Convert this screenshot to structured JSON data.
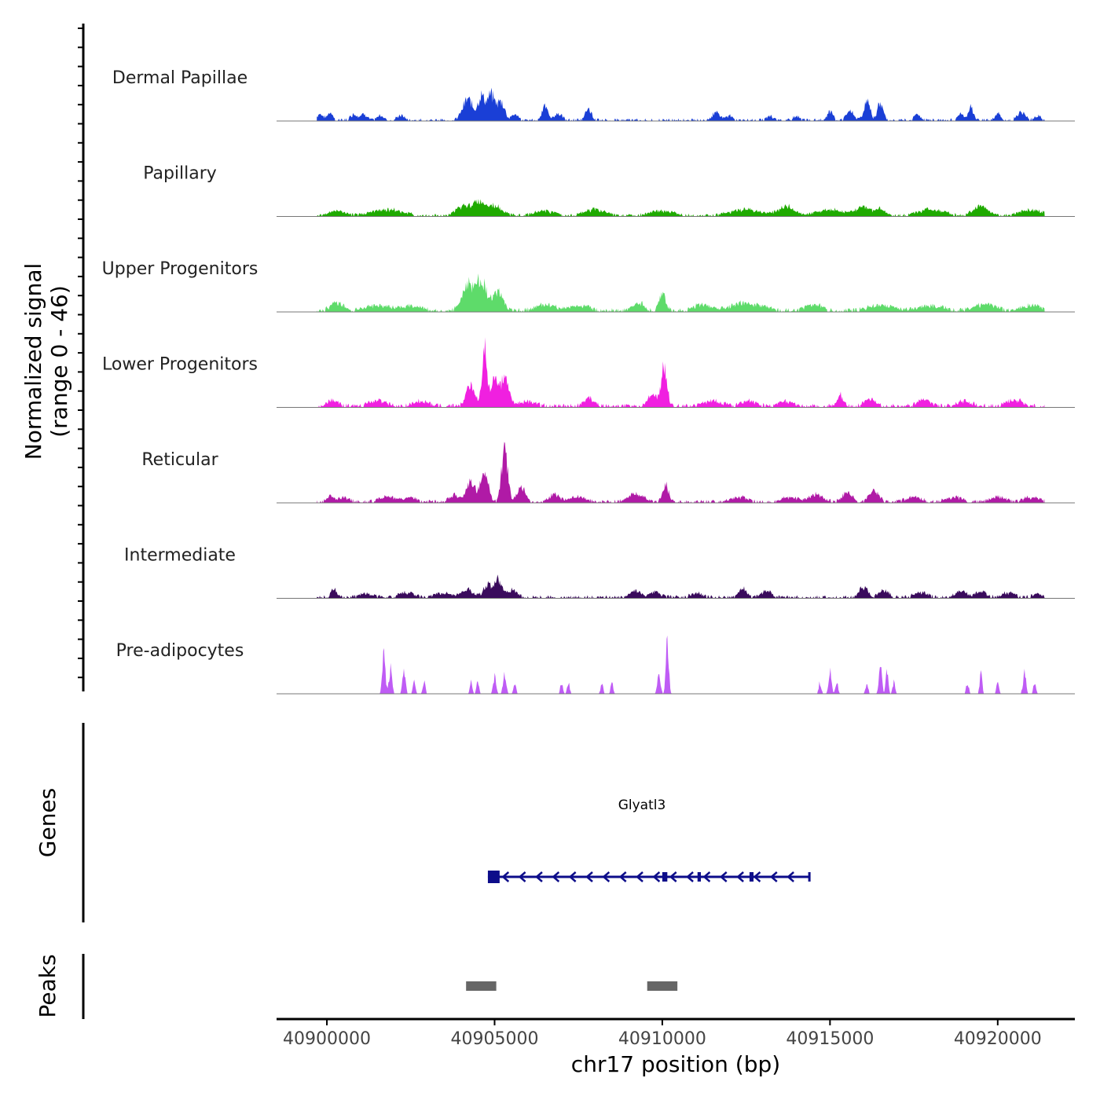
{
  "chart_data": {
    "type": "area",
    "title": "",
    "ylabel_line1": "Normalized signal",
    "ylabel_line2": "(range 0 - 46)",
    "genes_label": "Genes",
    "peaks_label": "Peaks",
    "xlabel": "chr17 position (bp)",
    "xlim": [
      40898500,
      40922300
    ],
    "ylim": [
      0,
      46
    ],
    "xticks": [
      40900000,
      40905000,
      40910000,
      40915000,
      40920000
    ],
    "xtick_labels": [
      "40900000",
      "40905000",
      "40910000",
      "40915000",
      "40920000"
    ],
    "tracks": [
      {
        "name": "Dermal Papillae",
        "color": "#1A3FD6",
        "peaks": [
          [
            40899800,
            4,
            130
          ],
          [
            40900100,
            5,
            100
          ],
          [
            40900800,
            4,
            130
          ],
          [
            40901100,
            4,
            140
          ],
          [
            40901600,
            3,
            120
          ],
          [
            40902200,
            3,
            140
          ],
          [
            40904200,
            14,
            200
          ],
          [
            40904600,
            16,
            140
          ],
          [
            40904900,
            17,
            160
          ],
          [
            40905200,
            12,
            140
          ],
          [
            40905600,
            4,
            120
          ],
          [
            40906500,
            9,
            120
          ],
          [
            40906900,
            4,
            160
          ],
          [
            40907800,
            8,
            110
          ],
          [
            40911600,
            5,
            150
          ],
          [
            40912000,
            3,
            120
          ],
          [
            40913200,
            3,
            120
          ],
          [
            40914000,
            3,
            120
          ],
          [
            40915000,
            6,
            110
          ],
          [
            40915600,
            6,
            140
          ],
          [
            40916100,
            13,
            120
          ],
          [
            40916500,
            12,
            110
          ],
          [
            40917600,
            4,
            110
          ],
          [
            40918900,
            4,
            110
          ],
          [
            40919200,
            10,
            90
          ],
          [
            40920000,
            4,
            120
          ],
          [
            40920700,
            5,
            160
          ],
          [
            40921200,
            3,
            120
          ]
        ],
        "floor": 1
      },
      {
        "name": "Papillary",
        "color": "#1FAA00",
        "peaks": [
          [
            40900300,
            3,
            300
          ],
          [
            40901800,
            4,
            600
          ],
          [
            40904000,
            5,
            250
          ],
          [
            40904500,
            9,
            300
          ],
          [
            40905000,
            6,
            300
          ],
          [
            40906500,
            3,
            400
          ],
          [
            40908000,
            4,
            400
          ],
          [
            40910000,
            3,
            500
          ],
          [
            40912500,
            4,
            600
          ],
          [
            40913700,
            6,
            300
          ],
          [
            40915000,
            4,
            500
          ],
          [
            40916000,
            6,
            300
          ],
          [
            40916500,
            5,
            150
          ],
          [
            40918000,
            4,
            500
          ],
          [
            40919500,
            6,
            300
          ],
          [
            40921000,
            4,
            400
          ]
        ],
        "floor": 1
      },
      {
        "name": "Upper Progenitors",
        "color": "#5EDB6A",
        "peaks": [
          [
            40900300,
            5,
            250
          ],
          [
            40901500,
            3,
            500
          ],
          [
            40902500,
            3,
            400
          ],
          [
            40904200,
            17,
            230
          ],
          [
            40904600,
            21,
            200
          ],
          [
            40905100,
            12,
            200
          ],
          [
            40906500,
            4,
            350
          ],
          [
            40907500,
            3,
            400
          ],
          [
            40909300,
            5,
            200
          ],
          [
            40910000,
            11,
            130
          ],
          [
            40911200,
            4,
            300
          ],
          [
            40912500,
            5,
            600
          ],
          [
            40914500,
            4,
            300
          ],
          [
            40916500,
            3,
            500
          ],
          [
            40918000,
            3,
            500
          ],
          [
            40919600,
            4,
            400
          ],
          [
            40921000,
            3,
            400
          ]
        ],
        "floor": 1.5
      },
      {
        "name": "Lower Progenitors",
        "color": "#F020E0",
        "peaks": [
          [
            40900200,
            4,
            200
          ],
          [
            40901500,
            4,
            300
          ],
          [
            40902800,
            3,
            300
          ],
          [
            40904300,
            14,
            180
          ],
          [
            40904700,
            44,
            90
          ],
          [
            40905000,
            20,
            140
          ],
          [
            40905300,
            18,
            160
          ],
          [
            40906000,
            3,
            300
          ],
          [
            40907800,
            5,
            200
          ],
          [
            40909700,
            8,
            160
          ],
          [
            40910050,
            25,
            120
          ],
          [
            40911500,
            3,
            400
          ],
          [
            40912600,
            3,
            300
          ],
          [
            40913700,
            3,
            300
          ],
          [
            40915300,
            7,
            110
          ],
          [
            40916200,
            5,
            200
          ],
          [
            40917800,
            4,
            250
          ],
          [
            40919000,
            3,
            300
          ],
          [
            40920500,
            4,
            300
          ]
        ],
        "floor": 1.5
      },
      {
        "name": "Reticular",
        "color": "#B01AA6",
        "peaks": [
          [
            40900100,
            4,
            120
          ],
          [
            40900500,
            3,
            200
          ],
          [
            40901800,
            4,
            300
          ],
          [
            40902500,
            3,
            200
          ],
          [
            40903800,
            4,
            200
          ],
          [
            40904300,
            14,
            180
          ],
          [
            40904700,
            22,
            140
          ],
          [
            40905300,
            36,
            120
          ],
          [
            40905800,
            11,
            160
          ],
          [
            40906800,
            5,
            200
          ],
          [
            40907500,
            3,
            300
          ],
          [
            40909200,
            5,
            300
          ],
          [
            40910100,
            11,
            120
          ],
          [
            40912300,
            3,
            300
          ],
          [
            40913800,
            3,
            300
          ],
          [
            40914600,
            5,
            250
          ],
          [
            40915500,
            6,
            200
          ],
          [
            40916300,
            8,
            180
          ],
          [
            40917500,
            3,
            300
          ],
          [
            40918700,
            3,
            300
          ],
          [
            40920000,
            3,
            300
          ],
          [
            40921000,
            3,
            300
          ]
        ],
        "floor": 1.2
      },
      {
        "name": "Intermediate",
        "color": "#3A0B5C",
        "peaks": [
          [
            40900200,
            6,
            100
          ],
          [
            40901200,
            2,
            300
          ],
          [
            40902400,
            3,
            300
          ],
          [
            40903500,
            3,
            300
          ],
          [
            40904200,
            5,
            220
          ],
          [
            40904800,
            8,
            180
          ],
          [
            40905100,
            11,
            140
          ],
          [
            40905500,
            5,
            200
          ],
          [
            40909200,
            4,
            200
          ],
          [
            40909800,
            3,
            200
          ],
          [
            40911000,
            3,
            200
          ],
          [
            40912400,
            6,
            150
          ],
          [
            40913100,
            4,
            200
          ],
          [
            40916000,
            7,
            150
          ],
          [
            40916600,
            4,
            200
          ],
          [
            40917700,
            3,
            250
          ],
          [
            40918900,
            4,
            200
          ],
          [
            40919500,
            4,
            200
          ],
          [
            40920300,
            3,
            250
          ],
          [
            40921200,
            2,
            200
          ]
        ],
        "floor": 1.2
      },
      {
        "name": "Pre-adipocytes",
        "color": "#BF5CF5",
        "peaks": [
          [
            40901700,
            27,
            60
          ],
          [
            40901900,
            18,
            60
          ],
          [
            40902300,
            15,
            60
          ],
          [
            40902600,
            8,
            50
          ],
          [
            40902900,
            8,
            50
          ],
          [
            40904300,
            8,
            50
          ],
          [
            40904500,
            8,
            50
          ],
          [
            40905000,
            12,
            60
          ],
          [
            40905300,
            15,
            60
          ],
          [
            40905600,
            8,
            50
          ],
          [
            40907000,
            8,
            50
          ],
          [
            40907200,
            8,
            50
          ],
          [
            40908200,
            8,
            50
          ],
          [
            40908500,
            8,
            50
          ],
          [
            40909900,
            15,
            60
          ],
          [
            40910150,
            39,
            55
          ],
          [
            40911000,
            0,
            0
          ],
          [
            40914700,
            8,
            50
          ],
          [
            40915000,
            15,
            60
          ],
          [
            40915200,
            8,
            50
          ],
          [
            40916100,
            8,
            50
          ],
          [
            40916500,
            24,
            55
          ],
          [
            40916700,
            15,
            50
          ],
          [
            40916900,
            8,
            50
          ],
          [
            40919100,
            8,
            50
          ],
          [
            40919500,
            15,
            50
          ],
          [
            40920000,
            8,
            50
          ],
          [
            40920800,
            15,
            60
          ],
          [
            40921100,
            8,
            50
          ],
          [
            40921500,
            8,
            50
          ]
        ],
        "floor": 0,
        "spiky": true
      }
    ],
    "gene": {
      "name": "Glyatl3",
      "start": 40904800,
      "end": 40914400,
      "strand": "-",
      "color": "#0D0D8A",
      "exons": [
        [
          40904800,
          40905150
        ],
        [
          40910000,
          40910150
        ],
        [
          40911050,
          40911150
        ],
        [
          40912600,
          40912720
        ],
        [
          40914350,
          40914420
        ]
      ]
    },
    "peak_regions": [
      [
        40904150,
        40905050
      ],
      [
        40909550,
        40910450
      ]
    ],
    "peak_color": "#666666"
  }
}
